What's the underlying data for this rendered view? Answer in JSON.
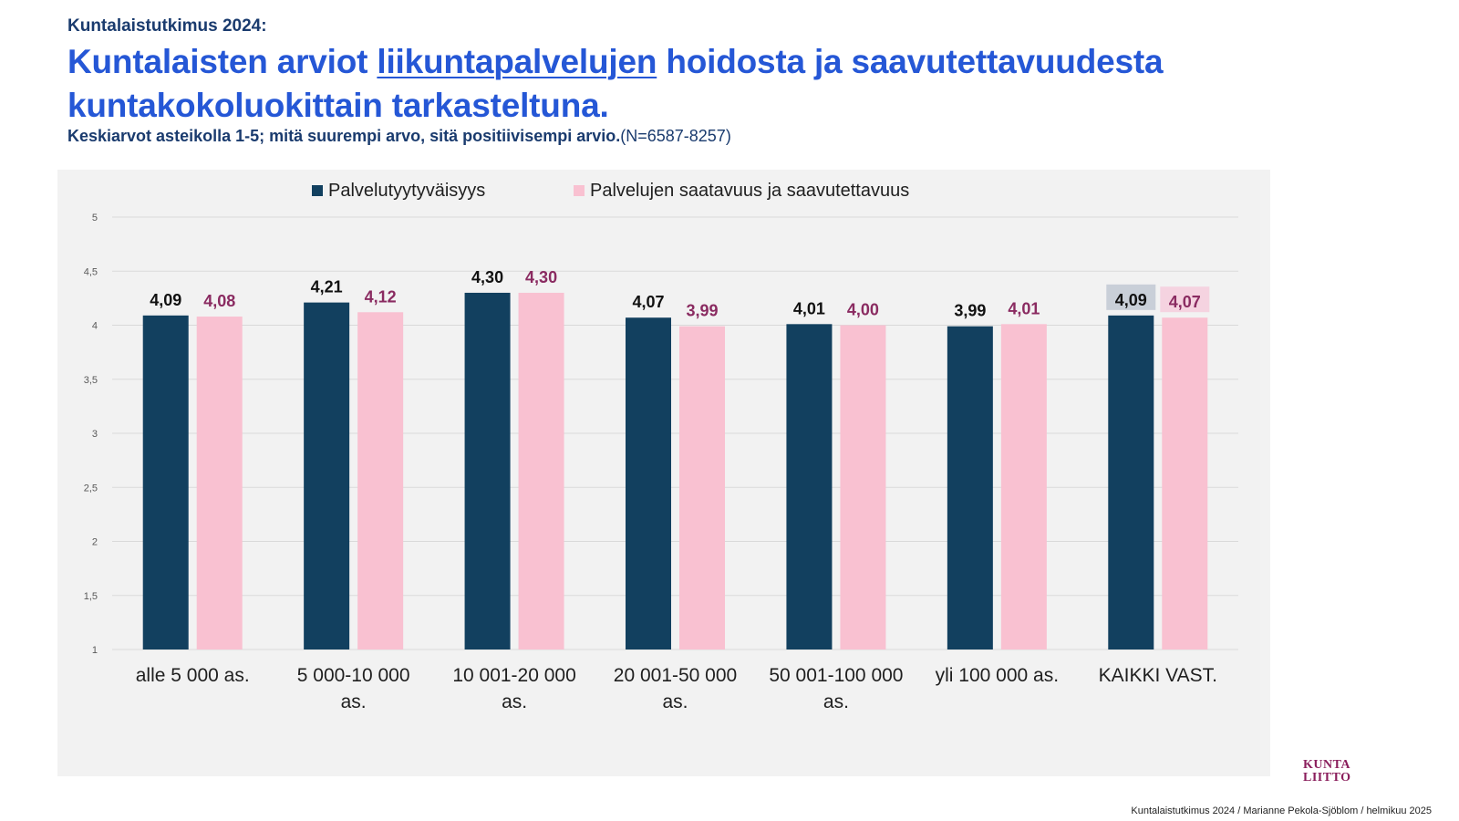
{
  "header": {
    "eyebrow": "Kuntalaistutkimus 2024:",
    "title_part1": "Kuntalaisten arviot ",
    "title_emphasis": "liikuntapalvelujen",
    "title_part2": " hoidosta ja saavutettavuudesta kuntakokoluokittain tarkasteltuna.",
    "subtitle_bold": "Keskiarvot asteikolla 1-5; mitä suurempi arvo, sitä positiivisempi arvio.",
    "subtitle_n": "(N=6587-8257)"
  },
  "footer": {
    "credit": "Kuntalaistutkimus 2024 / Marianne Pekola-Sjöblom / helmikuu 2025",
    "logo_line1": "KUNTA",
    "logo_line2": "LIITTO"
  },
  "colors": {
    "series1": "#12405f",
    "series2": "#f9c1d1",
    "label2": "#8a2b61",
    "title": "#2557d6",
    "logo": "#8a1e5c"
  },
  "chart_data": {
    "type": "bar",
    "categories": [
      [
        "alle 5 000 as."
      ],
      [
        "5 000-10 000",
        "as."
      ],
      [
        "10 001-20 000",
        "as."
      ],
      [
        "20 001-50 000",
        "as."
      ],
      [
        "50 001-100 000",
        "as."
      ],
      [
        "yli 100 000 as."
      ],
      [
        "KAIKKI VAST."
      ]
    ],
    "series": [
      {
        "name": "Palvelutyytyväisyys",
        "values": [
          4.09,
          4.21,
          4.3,
          4.07,
          4.01,
          3.99,
          4.09
        ],
        "labels": [
          "4,09",
          "4,21",
          "4,30",
          "4,07",
          "4,01",
          "3,99",
          "4,09"
        ]
      },
      {
        "name": "Palvelujen saatavuus ja saavutettavuus",
        "values": [
          4.08,
          4.12,
          4.3,
          3.99,
          4.0,
          4.01,
          4.07
        ],
        "labels": [
          "4,08",
          "4,12",
          "4,30",
          "3,99",
          "4,00",
          "4,01",
          "4,07"
        ]
      }
    ],
    "ylim": [
      1,
      5
    ],
    "yticks": [
      1,
      1.5,
      2,
      2.5,
      3,
      3.5,
      4,
      4.5,
      5
    ],
    "ytick_labels": [
      "1",
      "1,5",
      "2",
      "2,5",
      "3",
      "3,5",
      "4",
      "4,5",
      "5"
    ],
    "legend_position": "top",
    "grid": true,
    "highlighted_category": "KAIKKI VAST."
  }
}
